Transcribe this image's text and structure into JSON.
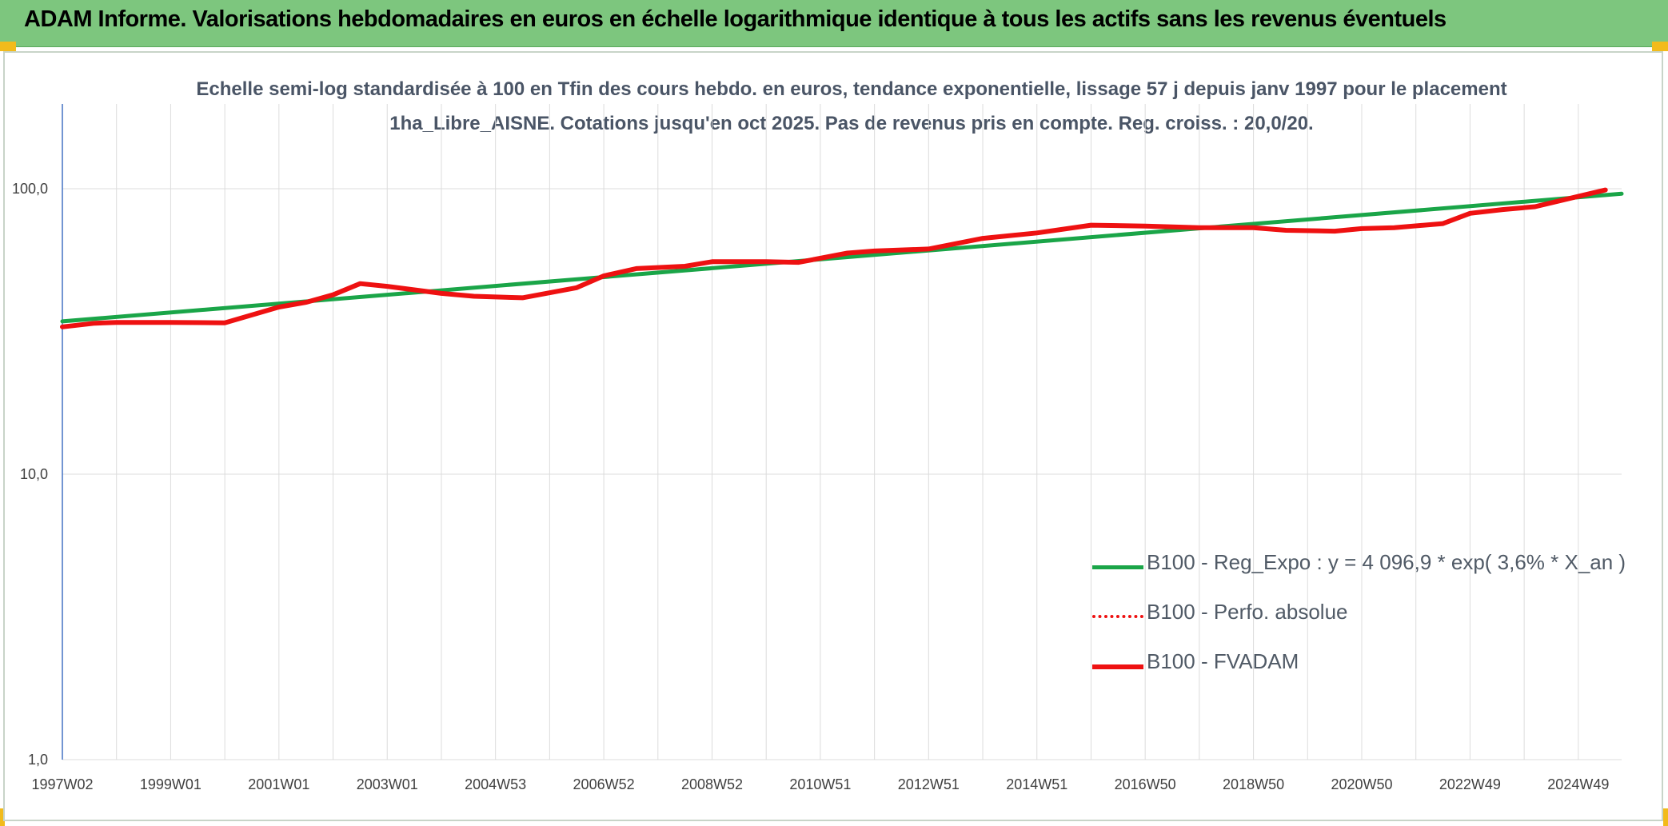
{
  "header": {
    "title": "ADAM Informe. Valorisations hebdomadaires en euros en échelle logarithmique identique à tous les actifs sans les revenus éventuels"
  },
  "chart_data": {
    "type": "line",
    "title": "Echelle semi-log standardisée à 100 en Tfin des cours hebdo. en euros, tendance exponentielle, lissage 57 j depuis janv 1997 pour le placement 1ha_Libre_AISNE. Cotations jusqu'en oct 2025. Pas de revenus pris en compte. Reg. croiss. : 20,0/20.",
    "xlabel": "",
    "ylabel": "",
    "y_scale": "log",
    "ylim": [
      1,
      200
    ],
    "xlim": [
      1997.0,
      2025.8
    ],
    "y_ticks": [
      {
        "value": 1,
        "label": "1,0"
      },
      {
        "value": 10,
        "label": "10,0"
      },
      {
        "value": 100,
        "label": "100,0"
      }
    ],
    "x_ticks": [
      {
        "value": 1997.0,
        "label": "1997W02"
      },
      {
        "value": 1999.0,
        "label": "1999W01"
      },
      {
        "value": 2001.0,
        "label": "2001W01"
      },
      {
        "value": 2003.0,
        "label": "2003W01"
      },
      {
        "value": 2005.0,
        "label": "2004W53"
      },
      {
        "value": 2007.0,
        "label": "2006W52"
      },
      {
        "value": 2009.0,
        "label": "2008W52"
      },
      {
        "value": 2011.0,
        "label": "2010W51"
      },
      {
        "value": 2013.0,
        "label": "2012W51"
      },
      {
        "value": 2015.0,
        "label": "2014W51"
      },
      {
        "value": 2017.0,
        "label": "2016W50"
      },
      {
        "value": 2019.0,
        "label": "2018W50"
      },
      {
        "value": 2021.0,
        "label": "2020W50"
      },
      {
        "value": 2023.0,
        "label": "2022W49"
      },
      {
        "value": 2025.0,
        "label": "2024W49"
      }
    ],
    "grid": true,
    "legend_position": "bottom-right",
    "series": [
      {
        "name": "B100 - Reg_Expo : y = 4 096,9 * exp( 3,6% *  X_an )",
        "color": "#1aa548",
        "style": "solid",
        "x": [
          1997.0,
          2025.8
        ],
        "y": [
          34.3,
          96.0
        ]
      },
      {
        "name": "B100 - Perfo. absolue",
        "color": "#ee1111",
        "style": "dotted",
        "x": [],
        "y": []
      },
      {
        "name": "B100 - FVADAM",
        "color": "#ee1111",
        "style": "solid",
        "x": [
          1997.0,
          1997.6,
          1998.0,
          1999.0,
          2000.0,
          2001.0,
          2001.5,
          2002.0,
          2002.5,
          2003.0,
          2004.0,
          2004.6,
          2005.5,
          2006.5,
          2007.0,
          2007.6,
          2008.5,
          2009.0,
          2010.0,
          2010.6,
          2011.5,
          2012.0,
          2013.0,
          2014.0,
          2015.0,
          2016.0,
          2017.0,
          2018.0,
          2019.0,
          2019.6,
          2020.5,
          2021.0,
          2021.6,
          2022.5,
          2023.0,
          2023.6,
          2024.2,
          2025.0,
          2025.5
        ],
        "y": [
          32.8,
          33.8,
          34.0,
          34.0,
          33.9,
          38.5,
          40.0,
          42.5,
          46.5,
          45.5,
          43.0,
          42.0,
          41.5,
          45.0,
          49.5,
          52.5,
          53.5,
          55.5,
          55.5,
          55.2,
          59.5,
          60.5,
          61.5,
          67.0,
          70.0,
          74.5,
          74.0,
          73.0,
          73.0,
          71.5,
          71.0,
          72.5,
          73.0,
          75.5,
          82.0,
          84.5,
          86.5,
          94.0,
          99.0
        ]
      }
    ]
  },
  "legend": {
    "items": [
      {
        "label": "B100 - Reg_Expo : y = 4 096,9 * exp( 3,6% *  X_an )",
        "color": "#1aa548",
        "style": "solid"
      },
      {
        "label": "B100 - Perfo. absolue",
        "color": "#ee1111",
        "style": "dotted"
      },
      {
        "label": "B100 - FVADAM",
        "color": "#ee1111",
        "style": "solid"
      }
    ]
  }
}
